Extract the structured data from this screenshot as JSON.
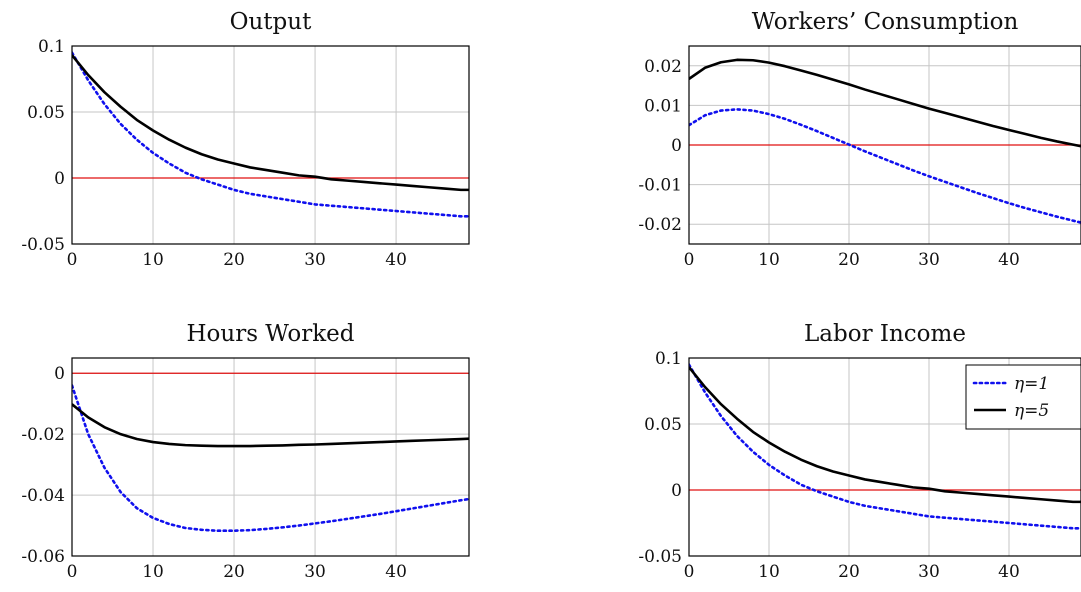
{
  "colors": {
    "eta1": "#1010ee",
    "eta5": "#000000",
    "zero": "#e01010",
    "grid": "#c6c6c6",
    "frame": "#000000"
  },
  "chart_data": [
    {
      "type": "line",
      "title": "Output",
      "xlim": [
        0,
        49
      ],
      "ylim": [
        -0.05,
        0.1
      ],
      "xticks": [
        0,
        10,
        20,
        30,
        40
      ],
      "xtick_labels": [
        "0",
        "10",
        "20",
        "30",
        "40"
      ],
      "yticks": [
        -0.05,
        0,
        0.05,
        0.1
      ],
      "ytick_labels": [
        "-0.05",
        "0",
        "0.05",
        "0.1"
      ],
      "grid": true,
      "zero_line": true,
      "x": [
        0,
        2,
        4,
        6,
        8,
        10,
        12,
        14,
        16,
        18,
        20,
        22,
        24,
        26,
        28,
        30,
        32,
        34,
        36,
        38,
        40,
        42,
        44,
        46,
        48,
        49
      ],
      "series": [
        {
          "name": "η=1",
          "style": "dotted",
          "values": [
            0.095,
            0.074,
            0.056,
            0.041,
            0.029,
            0.019,
            0.011,
            0.004,
            -0.001,
            -0.005,
            -0.009,
            -0.012,
            -0.014,
            -0.016,
            -0.018,
            -0.02,
            -0.021,
            -0.022,
            -0.023,
            -0.024,
            -0.025,
            -0.026,
            -0.027,
            -0.028,
            -0.029,
            -0.029
          ]
        },
        {
          "name": "η=5",
          "style": "solid",
          "values": [
            0.093,
            0.078,
            0.065,
            0.054,
            0.044,
            0.036,
            0.029,
            0.023,
            0.018,
            0.014,
            0.011,
            0.008,
            0.006,
            0.004,
            0.002,
            0.001,
            -0.001,
            -0.002,
            -0.003,
            -0.004,
            -0.005,
            -0.006,
            -0.007,
            -0.008,
            -0.009,
            -0.009
          ]
        }
      ]
    },
    {
      "type": "line",
      "title": "Workers’ Consumption",
      "xlim": [
        0,
        49
      ],
      "ylim": [
        -0.025,
        0.025
      ],
      "xticks": [
        0,
        10,
        20,
        30,
        40
      ],
      "xtick_labels": [
        "0",
        "10",
        "20",
        "30",
        "40"
      ],
      "yticks": [
        -0.02,
        -0.01,
        0,
        0.01,
        0.02
      ],
      "ytick_labels": [
        "-0.02",
        "-0.01",
        "0",
        "0.01",
        "0.02"
      ],
      "grid": true,
      "zero_line": true,
      "x": [
        0,
        2,
        4,
        6,
        8,
        10,
        12,
        14,
        16,
        18,
        20,
        22,
        24,
        26,
        28,
        30,
        32,
        34,
        36,
        38,
        40,
        42,
        44,
        46,
        48,
        49
      ],
      "series": [
        {
          "name": "η=1",
          "style": "dotted",
          "values": [
            0.005,
            0.0075,
            0.0087,
            0.009,
            0.0087,
            0.0078,
            0.0066,
            0.0051,
            0.0035,
            0.0018,
            0.0001,
            -0.0016,
            -0.0032,
            -0.0048,
            -0.0064,
            -0.0079,
            -0.0093,
            -0.0107,
            -0.0121,
            -0.0134,
            -0.0147,
            -0.0159,
            -0.017,
            -0.0181,
            -0.0191,
            -0.0196
          ]
        },
        {
          "name": "η=5",
          "style": "solid",
          "values": [
            0.0167,
            0.0195,
            0.0209,
            0.0215,
            0.0214,
            0.0208,
            0.0199,
            0.0188,
            0.0177,
            0.0165,
            0.0153,
            0.014,
            0.0128,
            0.0116,
            0.0104,
            0.0092,
            0.0081,
            0.007,
            0.0059,
            0.0048,
            0.0038,
            0.0028,
            0.0018,
            0.0009,
            0.0001,
            -0.0003
          ]
        }
      ]
    },
    {
      "type": "line",
      "title": "Hours Worked",
      "xlim": [
        0,
        49
      ],
      "ylim": [
        -0.06,
        0.005
      ],
      "xticks": [
        0,
        10,
        20,
        30,
        40
      ],
      "xtick_labels": [
        "0",
        "10",
        "20",
        "30",
        "40"
      ],
      "yticks": [
        -0.06,
        -0.04,
        -0.02,
        0
      ],
      "ytick_labels": [
        "-0.06",
        "-0.04",
        "-0.02",
        "0"
      ],
      "grid": true,
      "zero_line": true,
      "x": [
        0,
        2,
        4,
        6,
        8,
        10,
        12,
        14,
        16,
        18,
        20,
        22,
        24,
        26,
        28,
        30,
        32,
        34,
        36,
        38,
        40,
        42,
        44,
        46,
        48,
        49
      ],
      "series": [
        {
          "name": "η=1",
          "style": "dotted",
          "values": [
            -0.004,
            -0.02,
            -0.031,
            -0.039,
            -0.0443,
            -0.0475,
            -0.0495,
            -0.0508,
            -0.0514,
            -0.0517,
            -0.0517,
            -0.0515,
            -0.0511,
            -0.0506,
            -0.05,
            -0.0493,
            -0.0486,
            -0.0478,
            -0.047,
            -0.0462,
            -0.0453,
            -0.0444,
            -0.0435,
            -0.0426,
            -0.0417,
            -0.0413
          ]
        },
        {
          "name": "η=5",
          "style": "solid",
          "values": [
            -0.0102,
            -0.0145,
            -0.0177,
            -0.02,
            -0.0216,
            -0.0226,
            -0.0232,
            -0.0236,
            -0.0238,
            -0.0239,
            -0.0239,
            -0.0239,
            -0.0238,
            -0.0237,
            -0.0235,
            -0.0234,
            -0.0232,
            -0.023,
            -0.0228,
            -0.0226,
            -0.0224,
            -0.0222,
            -0.022,
            -0.0218,
            -0.0216,
            -0.0215
          ]
        }
      ]
    },
    {
      "type": "line",
      "title": "Labor Income",
      "xlim": [
        0,
        49
      ],
      "ylim": [
        -0.05,
        0.1
      ],
      "xticks": [
        0,
        10,
        20,
        30,
        40
      ],
      "xtick_labels": [
        "0",
        "10",
        "20",
        "30",
        "40"
      ],
      "yticks": [
        -0.05,
        0,
        0.05,
        0.1
      ],
      "ytick_labels": [
        "-0.05",
        "0",
        "0.05",
        "0.1"
      ],
      "grid": true,
      "zero_line": true,
      "legend": {
        "placement": "top-right",
        "entries": [
          "η=1",
          "η=5"
        ]
      },
      "x": [
        0,
        2,
        4,
        6,
        8,
        10,
        12,
        14,
        16,
        18,
        20,
        22,
        24,
        26,
        28,
        30,
        32,
        34,
        36,
        38,
        40,
        42,
        44,
        46,
        48,
        49
      ],
      "series": [
        {
          "name": "η=1",
          "style": "dotted",
          "values": [
            0.095,
            0.074,
            0.056,
            0.041,
            0.029,
            0.019,
            0.011,
            0.004,
            -0.001,
            -0.005,
            -0.009,
            -0.012,
            -0.014,
            -0.016,
            -0.018,
            -0.02,
            -0.021,
            -0.022,
            -0.023,
            -0.024,
            -0.025,
            -0.026,
            -0.027,
            -0.028,
            -0.029,
            -0.029
          ]
        },
        {
          "name": "η=5",
          "style": "solid",
          "values": [
            0.093,
            0.078,
            0.065,
            0.054,
            0.044,
            0.036,
            0.029,
            0.023,
            0.018,
            0.014,
            0.011,
            0.008,
            0.006,
            0.004,
            0.002,
            0.001,
            -0.001,
            -0.002,
            -0.003,
            -0.004,
            -0.005,
            -0.006,
            -0.007,
            -0.008,
            -0.009,
            -0.009
          ]
        }
      ]
    }
  ]
}
